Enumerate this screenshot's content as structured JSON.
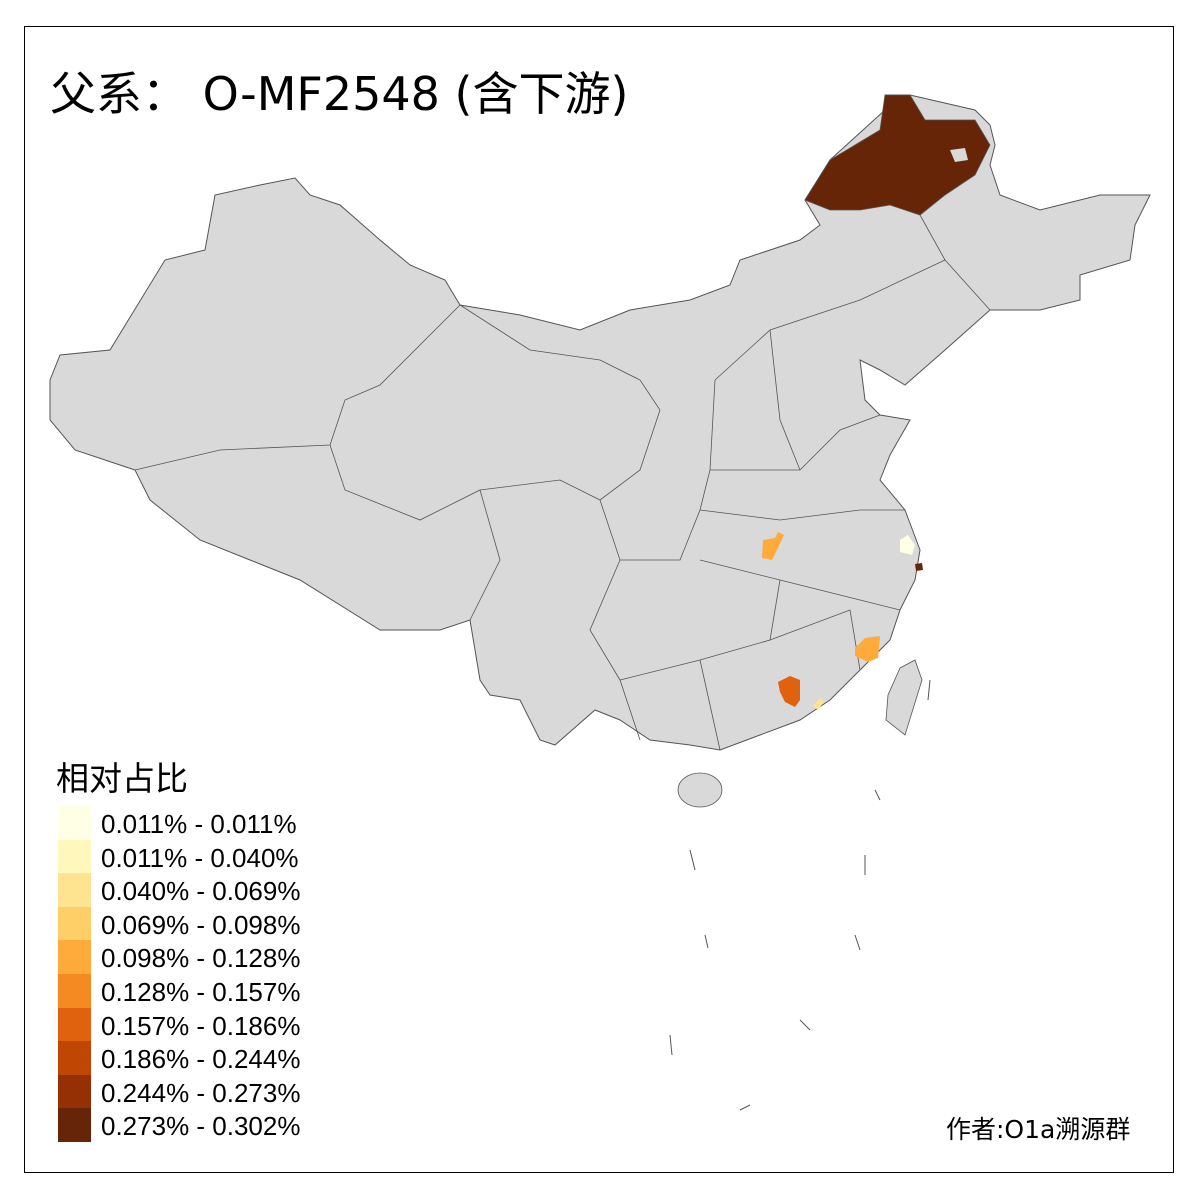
{
  "title": "父系： O-MF2548 (含下游)",
  "legend": {
    "title": "相对占比",
    "items": [
      {
        "label": "0.011% - 0.011%",
        "color": "#FFFFE5"
      },
      {
        "label": "0.011% - 0.040%",
        "color": "#FFF7BC"
      },
      {
        "label": "0.040% - 0.069%",
        "color": "#FEE391"
      },
      {
        "label": "0.069% - 0.098%",
        "color": "#FECF66"
      },
      {
        "label": "0.098% - 0.128%",
        "color": "#FEAB3C"
      },
      {
        "label": "0.128% - 0.157%",
        "color": "#F58A22"
      },
      {
        "label": "0.157% - 0.186%",
        "color": "#E0620F"
      },
      {
        "label": "0.186% - 0.244%",
        "color": "#C04604"
      },
      {
        "label": "0.244% - 0.273%",
        "color": "#943004"
      },
      {
        "label": "0.273% - 0.302%",
        "color": "#662506"
      }
    ]
  },
  "credit": "作者:O1a溯源群",
  "colors": {
    "no_data": "#D9D9D9",
    "border": "#555555"
  }
}
